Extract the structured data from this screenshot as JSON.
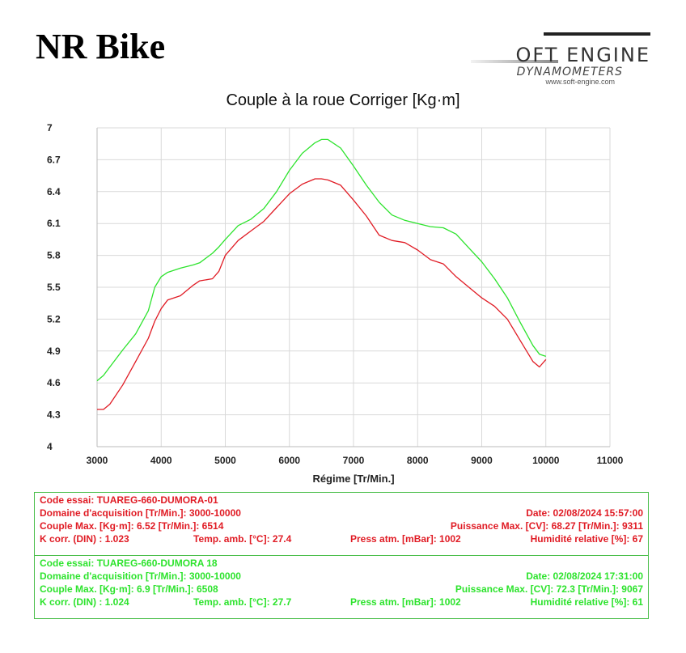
{
  "page_title": "NR Bike",
  "logo": {
    "name": "OFT ENGINE",
    "sub": "DYNAMOMETERS",
    "url": "www.soft-engine.com"
  },
  "colors": {
    "run1": "#e01b24",
    "run2": "#2de32d",
    "grid": "#d9d9d9",
    "box_border": "#4cbf4c"
  },
  "chart_data": {
    "type": "line",
    "title": "Couple à la roue Corriger [Kg·m]",
    "xlabel": "Régime [Tr/Min.]",
    "ylabel": "",
    "xlim": [
      3000,
      11000
    ],
    "ylim": [
      4,
      7
    ],
    "x_ticks": [
      3000,
      4000,
      5000,
      6000,
      7000,
      8000,
      9000,
      10000,
      11000
    ],
    "y_ticks": [
      4,
      4.3,
      4.6,
      4.9,
      5.2,
      5.5,
      5.8,
      6.1,
      6.4,
      6.7,
      7
    ],
    "x_tick_labels": [
      "3000",
      "4000",
      "5000",
      "6000",
      "7000",
      "8000",
      "9000",
      "10000",
      "11000"
    ],
    "y_tick_labels": [
      "4",
      "4.3",
      "4.6",
      "4.9",
      "5.2",
      "5.5",
      "5.8",
      "6.1",
      "6.4",
      "6.7",
      "7"
    ],
    "grid": true,
    "series": [
      {
        "color": "#e01b24",
        "x": [
          3000,
          3100,
          3200,
          3400,
          3600,
          3800,
          3900,
          4000,
          4100,
          4300,
          4500,
          4600,
          4800,
          4900,
          5000,
          5200,
          5400,
          5600,
          5800,
          6000,
          6200,
          6400,
          6500,
          6600,
          6800,
          7000,
          7200,
          7400,
          7600,
          7800,
          8000,
          8200,
          8400,
          8600,
          8800,
          9000,
          9200,
          9400,
          9600,
          9800,
          9900,
          10000
        ],
        "y": [
          4.35,
          4.35,
          4.4,
          4.58,
          4.8,
          5.02,
          5.18,
          5.3,
          5.38,
          5.42,
          5.52,
          5.56,
          5.58,
          5.65,
          5.8,
          5.94,
          6.03,
          6.12,
          6.25,
          6.38,
          6.47,
          6.52,
          6.52,
          6.51,
          6.46,
          6.32,
          6.17,
          5.99,
          5.94,
          5.92,
          5.85,
          5.76,
          5.72,
          5.6,
          5.5,
          5.4,
          5.32,
          5.2,
          5.0,
          4.8,
          4.75,
          4.82
        ]
      },
      {
        "color": "#2de32d",
        "x": [
          3000,
          3100,
          3200,
          3400,
          3600,
          3800,
          3900,
          4000,
          4100,
          4300,
          4500,
          4600,
          4800,
          4900,
          5000,
          5200,
          5400,
          5600,
          5800,
          6000,
          6200,
          6400,
          6500,
          6600,
          6800,
          7000,
          7200,
          7400,
          7600,
          7800,
          8000,
          8200,
          8400,
          8600,
          8800,
          9000,
          9200,
          9400,
          9600,
          9800,
          9900,
          10000
        ],
        "y": [
          4.62,
          4.67,
          4.75,
          4.91,
          5.06,
          5.28,
          5.5,
          5.6,
          5.64,
          5.68,
          5.71,
          5.73,
          5.82,
          5.88,
          5.95,
          6.08,
          6.14,
          6.24,
          6.4,
          6.6,
          6.76,
          6.86,
          6.89,
          6.89,
          6.81,
          6.64,
          6.46,
          6.3,
          6.18,
          6.13,
          6.1,
          6.07,
          6.06,
          6.0,
          5.87,
          5.74,
          5.58,
          5.4,
          5.17,
          4.95,
          4.87,
          4.85
        ]
      }
    ]
  },
  "runs": [
    {
      "code": "Code essai: TUAREG-660-DUMORA-01",
      "domaine": "Domaine d'acquisition [Tr/Min.]: 3000-10000",
      "date": "Date: 02/08/2024   15:57:00",
      "couple": "Couple Max. [Kg·m]: 6.52   [Tr/Min.]: 6514",
      "puissance": "Puissance Max. [CV]: 68.27   [Tr/Min.]: 9311",
      "kcorr": "K corr. (DIN) : 1.023",
      "temp": "Temp. amb. [°C]: 27.4",
      "press": "Press atm. [mBar]: 1002",
      "humid": "Humidité relative [%]: 67"
    },
    {
      "code": "Code essai: TUAREG-660-DUMORA 18",
      "domaine": "Domaine d'acquisition [Tr/Min.]: 3000-10000",
      "date": "Date: 02/08/2024   17:31:00",
      "couple": "Couple Max. [Kg·m]: 6.9   [Tr/Min.]: 6508",
      "puissance": "Puissance Max. [CV]: 72.3   [Tr/Min.]: 9067",
      "kcorr": "K corr. (DIN) : 1.024",
      "temp": "Temp. amb. [°C]: 27.7",
      "press": "Press atm. [mBar]: 1002",
      "humid": "Humidité relative [%]: 61"
    }
  ]
}
